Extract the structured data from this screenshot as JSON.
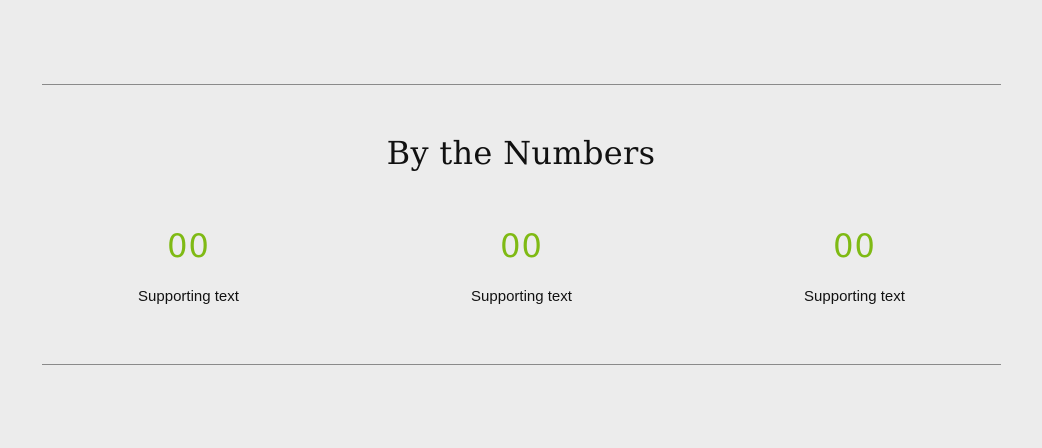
{
  "section": {
    "title": "By the Numbers",
    "accent_color": "#7fba14",
    "stats": [
      {
        "value": "00",
        "label": "Supporting text"
      },
      {
        "value": "00",
        "label": "Supporting text"
      },
      {
        "value": "00",
        "label": "Supporting text"
      }
    ]
  }
}
